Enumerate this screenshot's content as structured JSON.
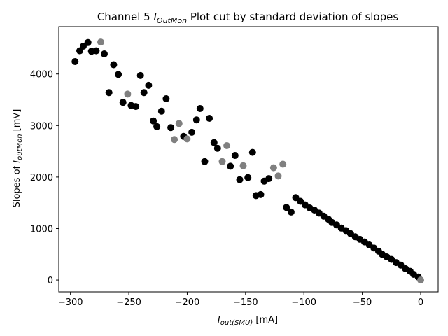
{
  "chart_data": {
    "type": "scatter",
    "title": {
      "prefix": "Channel 5 ",
      "symbol": "I",
      "subscript": "OutMon",
      "suffix": " Plot cut by standard deviation of slopes"
    },
    "xlabel": {
      "symbol": "I",
      "subscript": "out(SMU)",
      "suffix": " [mA]"
    },
    "ylabel": {
      "prefix": "Slopes of ",
      "symbol": "I",
      "subscript": "outMon",
      "suffix": " [mV]"
    },
    "xlim": [
      -310,
      15
    ],
    "ylim": [
      -230,
      4920
    ],
    "xticks": [
      -300,
      -250,
      -200,
      -150,
      -100,
      -50,
      0
    ],
    "yticks": [
      0,
      1000,
      2000,
      3000,
      4000
    ],
    "grid": false,
    "colors": {
      "kept": "#000000",
      "cut": "#808080"
    },
    "series": [
      {
        "points": [
          [
            -296,
            4240
          ],
          [
            -292,
            4450
          ],
          [
            -289,
            4540
          ],
          [
            -285,
            4610
          ],
          [
            -282,
            4440
          ],
          [
            -278,
            4450
          ],
          [
            -271,
            4390
          ],
          [
            -267,
            3640
          ],
          [
            -263,
            4180
          ],
          [
            -259,
            3990
          ],
          [
            -255,
            3450
          ],
          [
            -248,
            3390
          ],
          [
            -244,
            3370
          ],
          [
            -240,
            3970
          ],
          [
            -237,
            3640
          ],
          [
            -233,
            3780
          ],
          [
            -229,
            3090
          ],
          [
            -226,
            2980
          ],
          [
            -222,
            3280
          ],
          [
            -218,
            3520
          ],
          [
            -214,
            2960
          ],
          [
            -203,
            2790
          ],
          [
            -196,
            2870
          ],
          [
            -192,
            3110
          ],
          [
            -189,
            3330
          ],
          [
            -185,
            2300
          ],
          [
            -181,
            3140
          ],
          [
            -177,
            2670
          ],
          [
            -174,
            2560
          ],
          [
            -163,
            2210
          ],
          [
            -159,
            2420
          ],
          [
            -155,
            1950
          ],
          [
            -148,
            1990
          ],
          [
            -144,
            2480
          ],
          [
            -141,
            1640
          ],
          [
            -137,
            1660
          ],
          [
            -134,
            1920
          ],
          [
            -130,
            1970
          ],
          [
            -115,
            1410
          ],
          [
            -111,
            1320
          ],
          [
            -107,
            1600
          ],
          [
            -103,
            1530
          ],
          [
            -99,
            1460
          ],
          [
            -95,
            1400
          ],
          [
            -91,
            1360
          ],
          [
            -87,
            1300
          ],
          [
            -83,
            1240
          ],
          [
            -79,
            1180
          ],
          [
            -76,
            1120
          ],
          [
            -72,
            1070
          ],
          [
            -68,
            1010
          ],
          [
            -64,
            960
          ],
          [
            -60,
            900
          ],
          [
            -56,
            840
          ],
          [
            -52,
            790
          ],
          [
            -48,
            740
          ],
          [
            -44,
            680
          ],
          [
            -40,
            620
          ],
          [
            -36,
            560
          ],
          [
            -33,
            500
          ],
          [
            -29,
            450
          ],
          [
            -25,
            400
          ],
          [
            -21,
            340
          ],
          [
            -17,
            290
          ],
          [
            -13,
            220
          ],
          [
            -9,
            170
          ],
          [
            -6,
            110
          ],
          [
            -2,
            60
          ]
        ]
      },
      {
        "points": [
          [
            -274,
            4620
          ],
          [
            -251,
            3610
          ],
          [
            -211,
            2730
          ],
          [
            -207,
            3040
          ],
          [
            -200,
            2740
          ],
          [
            -170,
            2300
          ],
          [
            -166,
            2610
          ],
          [
            -152,
            2220
          ],
          [
            -126,
            2180
          ],
          [
            -122,
            2020
          ],
          [
            -118,
            2250
          ],
          [
            0,
            0
          ]
        ]
      }
    ]
  }
}
